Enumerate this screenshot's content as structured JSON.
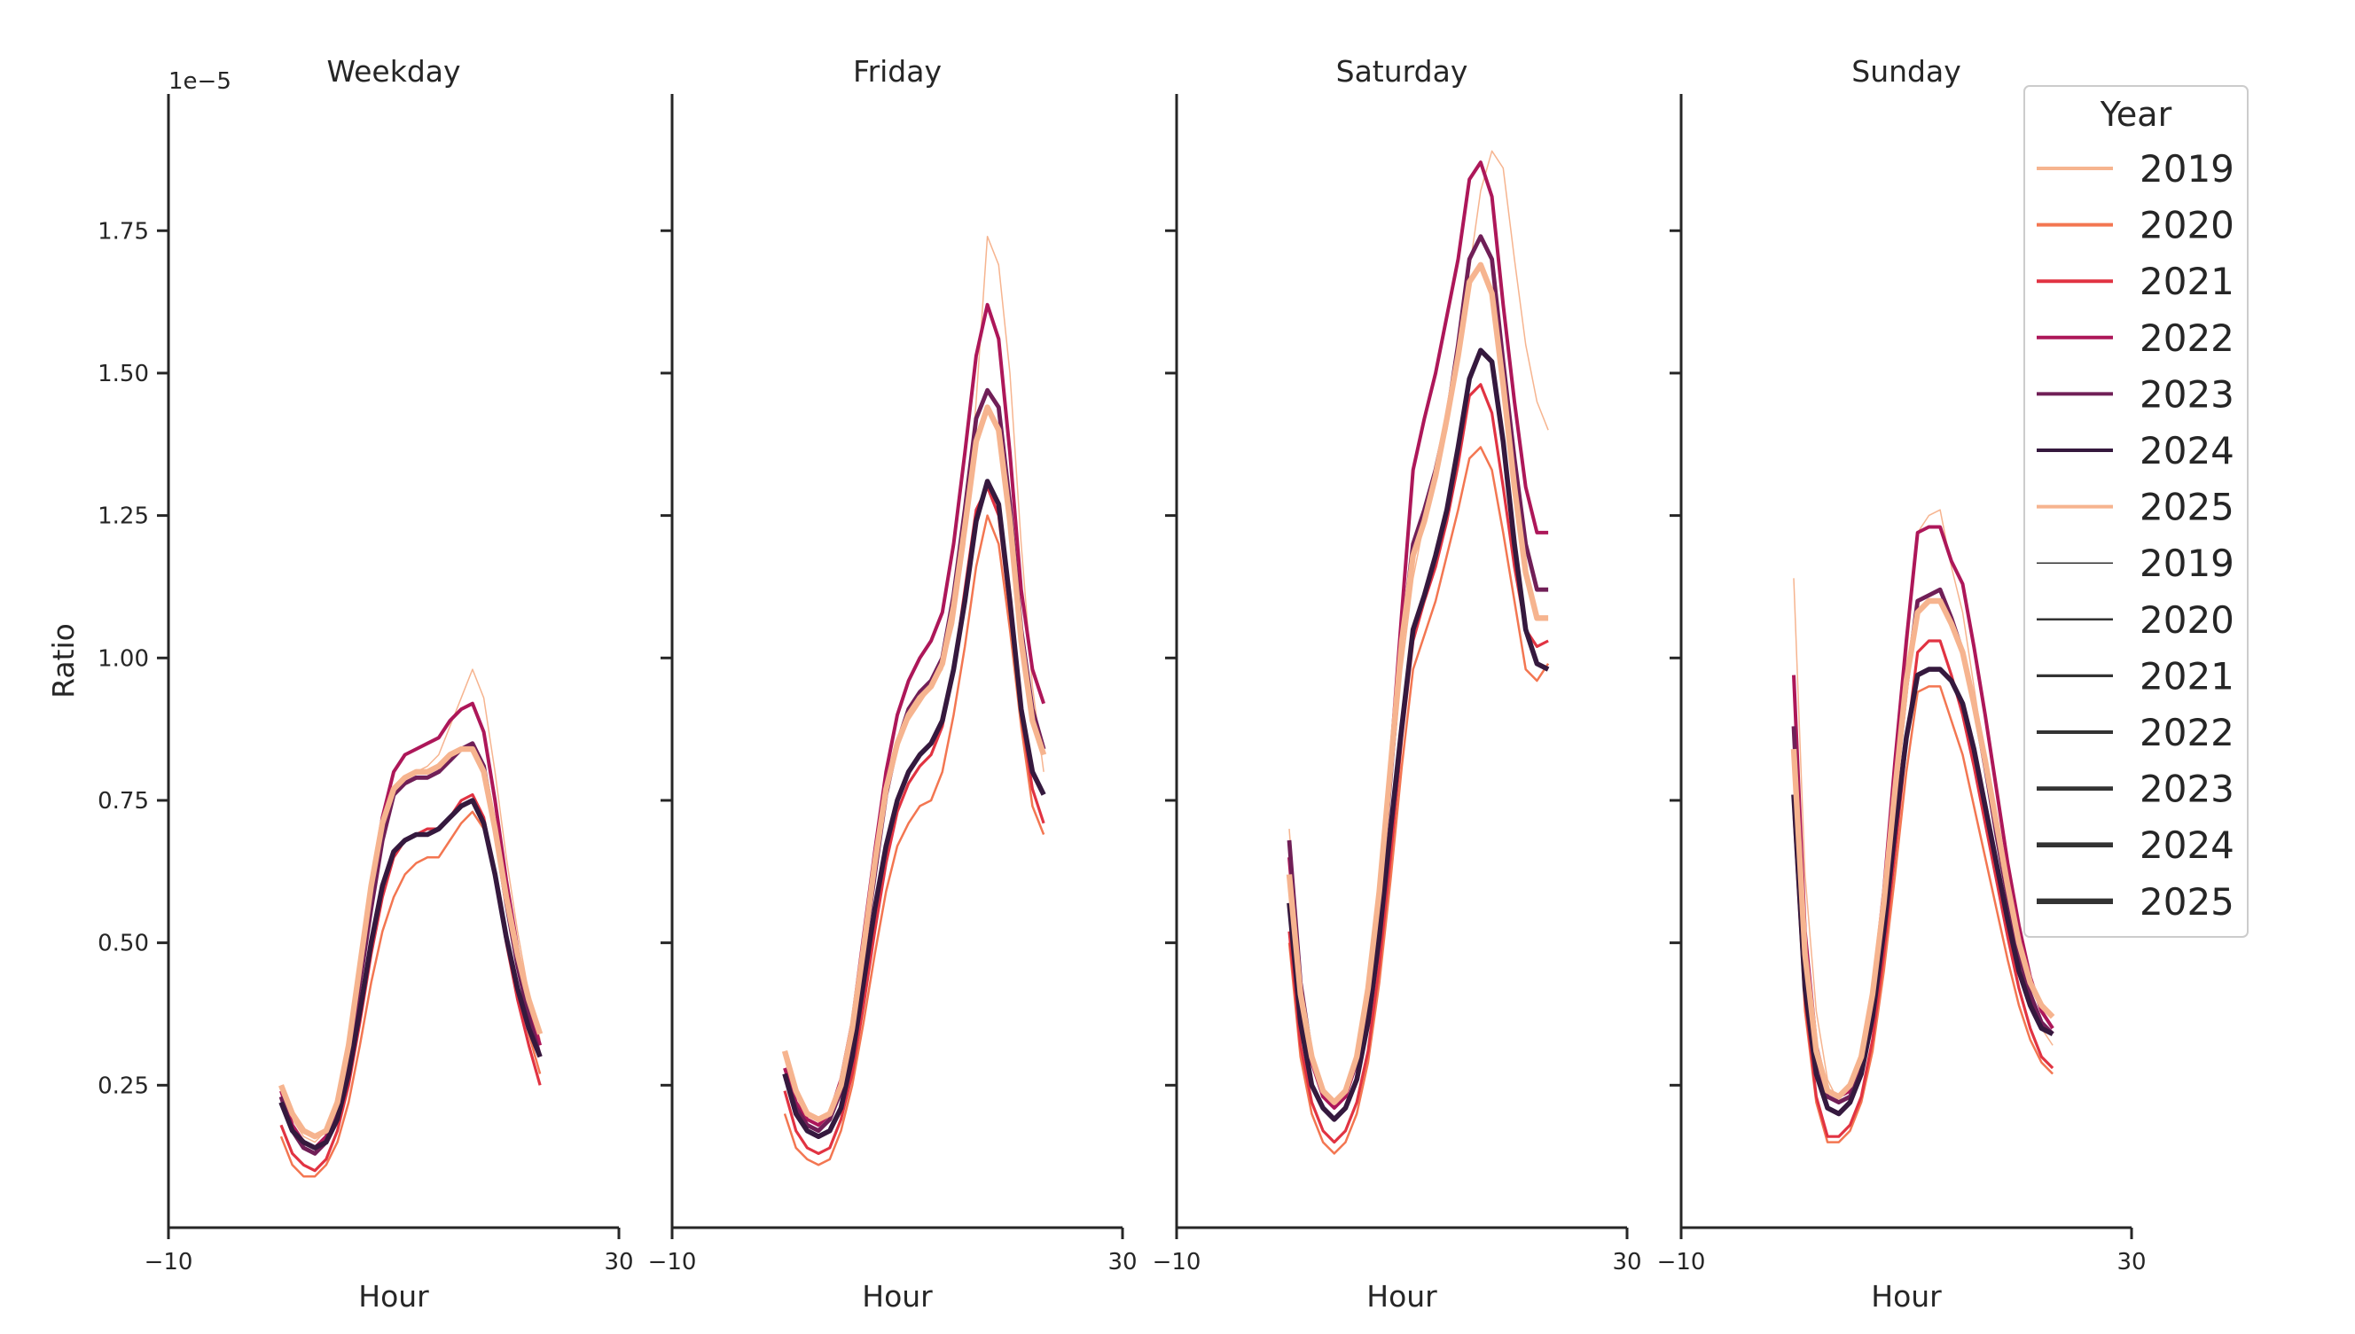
{
  "chart_data": {
    "type": "line",
    "y_label": "Ratio",
    "x_label": "Hour",
    "y_offset_label": "1e−5",
    "x_lim": [
      -10,
      30
    ],
    "x_ticks": [
      -10,
      30
    ],
    "x_tick_labels": [
      "−10",
      "30"
    ],
    "y_lim": [
      0.0,
      1.99
    ],
    "y_ticks": [
      0.25,
      0.5,
      0.75,
      1.0,
      1.25,
      1.5,
      1.75
    ],
    "y_tick_labels": [
      "0.25",
      "0.50",
      "0.75",
      "1.00",
      "1.25",
      "1.50",
      "1.75"
    ],
    "years": [
      "2019",
      "2020",
      "2021",
      "2022",
      "2023",
      "2024",
      "2025"
    ],
    "year_colors": {
      "2019": "#f6b48f",
      "2020": "#f37651",
      "2021": "#e13342",
      "2022": "#ad1759",
      "2023": "#701f57",
      "2024": "#35193e",
      "2025": "#f6b48f"
    },
    "year_widths": {
      "2019": 1.5,
      "2020": 2.5,
      "2021": 3.2,
      "2022": 4.0,
      "2023": 4.8,
      "2024": 5.6,
      "2025": 6.4
    },
    "legend": {
      "title": "Year",
      "hue_entries": [
        "2019",
        "2020",
        "2021",
        "2022",
        "2023",
        "2024",
        "2025"
      ],
      "size_entries": [
        "2019",
        "2020",
        "2021",
        "2022",
        "2023",
        "2024",
        "2025"
      ],
      "size_color": "#333333"
    },
    "hours": [
      0,
      1,
      2,
      3,
      4,
      5,
      6,
      7,
      8,
      9,
      10,
      11,
      12,
      13,
      14,
      15,
      16,
      17,
      18,
      19,
      20,
      21,
      22,
      23
    ],
    "panels": [
      {
        "title": "Weekday",
        "series": [
          {
            "year": "2019",
            "values": [
              0.25,
              0.19,
              0.16,
              0.15,
              0.17,
              0.23,
              0.33,
              0.46,
              0.59,
              0.69,
              0.76,
              0.79,
              0.8,
              0.81,
              0.83,
              0.88,
              0.93,
              0.98,
              0.93,
              0.8,
              0.65,
              0.52,
              0.41,
              0.33
            ]
          },
          {
            "year": "2020",
            "values": [
              0.16,
              0.11,
              0.09,
              0.09,
              0.11,
              0.15,
              0.22,
              0.32,
              0.43,
              0.52,
              0.58,
              0.62,
              0.64,
              0.65,
              0.65,
              0.68,
              0.71,
              0.73,
              0.7,
              0.62,
              0.52,
              0.42,
              0.34,
              0.27
            ]
          },
          {
            "year": "2021",
            "values": [
              0.18,
              0.13,
              0.11,
              0.1,
              0.12,
              0.17,
              0.25,
              0.36,
              0.48,
              0.58,
              0.65,
              0.68,
              0.69,
              0.7,
              0.7,
              0.72,
              0.75,
              0.76,
              0.72,
              0.62,
              0.5,
              0.4,
              0.32,
              0.25
            ]
          },
          {
            "year": "2022",
            "values": [
              0.24,
              0.18,
              0.15,
              0.14,
              0.16,
              0.22,
              0.32,
              0.46,
              0.6,
              0.72,
              0.8,
              0.83,
              0.84,
              0.85,
              0.86,
              0.89,
              0.91,
              0.92,
              0.87,
              0.75,
              0.61,
              0.49,
              0.39,
              0.32
            ]
          },
          {
            "year": "2023",
            "values": [
              0.23,
              0.17,
              0.14,
              0.13,
              0.15,
              0.21,
              0.3,
              0.43,
              0.56,
              0.68,
              0.76,
              0.78,
              0.79,
              0.79,
              0.8,
              0.82,
              0.84,
              0.85,
              0.81,
              0.7,
              0.57,
              0.46,
              0.37,
              0.3
            ]
          },
          {
            "year": "2024",
            "values": [
              0.22,
              0.17,
              0.15,
              0.14,
              0.15,
              0.19,
              0.27,
              0.38,
              0.5,
              0.6,
              0.66,
              0.68,
              0.69,
              0.69,
              0.7,
              0.72,
              0.74,
              0.75,
              0.71,
              0.62,
              0.51,
              0.42,
              0.35,
              0.3
            ]
          },
          {
            "year": "2025",
            "values": [
              0.25,
              0.2,
              0.17,
              0.16,
              0.17,
              0.22,
              0.32,
              0.46,
              0.6,
              0.71,
              0.77,
              0.79,
              0.8,
              0.8,
              0.81,
              0.83,
              0.84,
              0.84,
              0.8,
              0.7,
              0.58,
              0.48,
              0.4,
              0.34
            ]
          }
        ]
      },
      {
        "title": "Friday",
        "series": [
          {
            "year": "2019",
            "values": [
              0.3,
              0.24,
              0.2,
              0.19,
              0.2,
              0.25,
              0.34,
              0.48,
              0.62,
              0.75,
              0.84,
              0.89,
              0.92,
              0.95,
              0.98,
              1.06,
              1.2,
              1.45,
              1.74,
              1.69,
              1.5,
              1.2,
              0.95,
              0.8
            ]
          },
          {
            "year": "2020",
            "values": [
              0.2,
              0.14,
              0.12,
              0.11,
              0.12,
              0.17,
              0.25,
              0.36,
              0.48,
              0.59,
              0.67,
              0.71,
              0.74,
              0.75,
              0.8,
              0.9,
              1.02,
              1.16,
              1.25,
              1.2,
              1.05,
              0.88,
              0.74,
              0.69
            ]
          },
          {
            "year": "2021",
            "values": [
              0.24,
              0.17,
              0.14,
              0.13,
              0.14,
              0.19,
              0.27,
              0.39,
              0.52,
              0.64,
              0.73,
              0.78,
              0.81,
              0.83,
              0.88,
              0.98,
              1.12,
              1.26,
              1.3,
              1.25,
              1.08,
              0.9,
              0.77,
              0.71
            ]
          },
          {
            "year": "2022",
            "values": [
              0.28,
              0.22,
              0.19,
              0.18,
              0.2,
              0.26,
              0.36,
              0.51,
              0.66,
              0.8,
              0.9,
              0.96,
              1.0,
              1.03,
              1.08,
              1.2,
              1.36,
              1.53,
              1.62,
              1.56,
              1.36,
              1.12,
              0.98,
              0.92
            ]
          },
          {
            "year": "2023",
            "values": [
              0.27,
              0.21,
              0.18,
              0.17,
              0.19,
              0.24,
              0.34,
              0.48,
              0.62,
              0.76,
              0.85,
              0.91,
              0.94,
              0.96,
              1.0,
              1.11,
              1.26,
              1.42,
              1.47,
              1.44,
              1.27,
              1.05,
              0.91,
              0.84
            ]
          },
          {
            "year": "2024",
            "values": [
              0.27,
              0.2,
              0.17,
              0.16,
              0.17,
              0.21,
              0.3,
              0.43,
              0.56,
              0.67,
              0.75,
              0.8,
              0.83,
              0.85,
              0.89,
              0.98,
              1.1,
              1.24,
              1.31,
              1.27,
              1.1,
              0.91,
              0.8,
              0.76
            ]
          },
          {
            "year": "2025",
            "values": [
              0.31,
              0.24,
              0.2,
              0.19,
              0.2,
              0.25,
              0.35,
              0.49,
              0.64,
              0.77,
              0.85,
              0.9,
              0.93,
              0.95,
              0.99,
              1.09,
              1.23,
              1.38,
              1.44,
              1.4,
              1.24,
              1.03,
              0.89,
              0.83
            ]
          }
        ]
      },
      {
        "title": "Saturday",
        "series": [
          {
            "year": "2019",
            "values": [
              0.7,
              0.43,
              0.3,
              0.24,
              0.22,
              0.24,
              0.3,
              0.41,
              0.57,
              0.77,
              0.98,
              1.14,
              1.24,
              1.32,
              1.4,
              1.52,
              1.68,
              1.82,
              1.89,
              1.86,
              1.7,
              1.55,
              1.45,
              1.4
            ]
          },
          {
            "year": "2020",
            "values": [
              0.5,
              0.3,
              0.2,
              0.15,
              0.13,
              0.15,
              0.2,
              0.29,
              0.43,
              0.61,
              0.81,
              0.98,
              1.04,
              1.1,
              1.18,
              1.26,
              1.35,
              1.37,
              1.33,
              1.22,
              1.1,
              0.98,
              0.96,
              0.99
            ]
          },
          {
            "year": "2021",
            "values": [
              0.52,
              0.32,
              0.22,
              0.17,
              0.15,
              0.17,
              0.22,
              0.31,
              0.46,
              0.65,
              0.86,
              1.03,
              1.1,
              1.16,
              1.24,
              1.34,
              1.46,
              1.48,
              1.43,
              1.3,
              1.16,
              1.05,
              1.02,
              1.03
            ]
          },
          {
            "year": "2022",
            "values": [
              0.65,
              0.41,
              0.29,
              0.23,
              0.21,
              0.23,
              0.29,
              0.41,
              0.59,
              0.82,
              1.08,
              1.33,
              1.42,
              1.5,
              1.6,
              1.7,
              1.84,
              1.87,
              1.81,
              1.62,
              1.45,
              1.3,
              1.22,
              1.22
            ]
          },
          {
            "year": "2023",
            "values": [
              0.68,
              0.43,
              0.3,
              0.24,
              0.22,
              0.24,
              0.29,
              0.4,
              0.57,
              0.79,
              1.03,
              1.2,
              1.26,
              1.33,
              1.42,
              1.55,
              1.7,
              1.74,
              1.7,
              1.52,
              1.35,
              1.2,
              1.12,
              1.12
            ]
          },
          {
            "year": "2024",
            "values": [
              0.57,
              0.36,
              0.25,
              0.21,
              0.19,
              0.21,
              0.26,
              0.36,
              0.51,
              0.7,
              0.88,
              1.05,
              1.11,
              1.18,
              1.26,
              1.37,
              1.49,
              1.54,
              1.52,
              1.38,
              1.2,
              1.05,
              0.99,
              0.98
            ]
          },
          {
            "year": "2025",
            "values": [
              0.62,
              0.41,
              0.3,
              0.24,
              0.22,
              0.24,
              0.3,
              0.42,
              0.59,
              0.81,
              1.03,
              1.18,
              1.24,
              1.32,
              1.42,
              1.53,
              1.66,
              1.69,
              1.64,
              1.48,
              1.3,
              1.15,
              1.07,
              1.07
            ]
          }
        ]
      },
      {
        "title": "Sunday",
        "series": [
          {
            "year": "2019",
            "values": [
              1.14,
              0.62,
              0.38,
              0.26,
              0.22,
              0.23,
              0.28,
              0.39,
              0.56,
              0.78,
              1.0,
              1.22,
              1.25,
              1.26,
              1.16,
              1.08,
              0.95,
              0.82,
              0.7,
              0.59,
              0.49,
              0.41,
              0.35,
              0.32
            ]
          },
          {
            "year": "2020",
            "values": [
              0.72,
              0.38,
              0.22,
              0.15,
              0.15,
              0.17,
              0.22,
              0.31,
              0.45,
              0.62,
              0.8,
              0.94,
              0.95,
              0.95,
              0.89,
              0.83,
              0.74,
              0.65,
              0.56,
              0.47,
              0.39,
              0.33,
              0.29,
              0.27
            ]
          },
          {
            "year": "2021",
            "values": [
              0.74,
              0.4,
              0.23,
              0.16,
              0.16,
              0.18,
              0.23,
              0.33,
              0.48,
              0.66,
              0.85,
              1.01,
              1.03,
              1.03,
              0.97,
              0.9,
              0.81,
              0.71,
              0.61,
              0.51,
              0.42,
              0.35,
              0.3,
              0.28
            ]
          },
          {
            "year": "2022",
            "values": [
              0.97,
              0.52,
              0.32,
              0.24,
              0.23,
              0.24,
              0.29,
              0.41,
              0.59,
              0.82,
              1.03,
              1.22,
              1.23,
              1.23,
              1.17,
              1.13,
              1.02,
              0.9,
              0.77,
              0.64,
              0.53,
              0.44,
              0.38,
              0.35
            ]
          },
          {
            "year": "2023",
            "values": [
              0.88,
              0.48,
              0.3,
              0.23,
              0.22,
              0.23,
              0.28,
              0.39,
              0.55,
              0.76,
              0.95,
              1.1,
              1.11,
              1.12,
              1.07,
              1.01,
              0.92,
              0.81,
              0.69,
              0.58,
              0.48,
              0.41,
              0.36,
              0.34
            ]
          },
          {
            "year": "2024",
            "values": [
              0.76,
              0.42,
              0.27,
              0.21,
              0.2,
              0.22,
              0.27,
              0.37,
              0.52,
              0.7,
              0.86,
              0.97,
              0.98,
              0.98,
              0.96,
              0.92,
              0.84,
              0.74,
              0.64,
              0.54,
              0.45,
              0.39,
              0.35,
              0.34
            ]
          },
          {
            "year": "2025",
            "values": [
              0.84,
              0.48,
              0.31,
              0.24,
              0.23,
              0.25,
              0.3,
              0.41,
              0.57,
              0.77,
              0.96,
              1.08,
              1.1,
              1.1,
              1.06,
              1.01,
              0.92,
              0.82,
              0.71,
              0.6,
              0.5,
              0.43,
              0.39,
              0.37
            ]
          }
        ]
      }
    ]
  }
}
